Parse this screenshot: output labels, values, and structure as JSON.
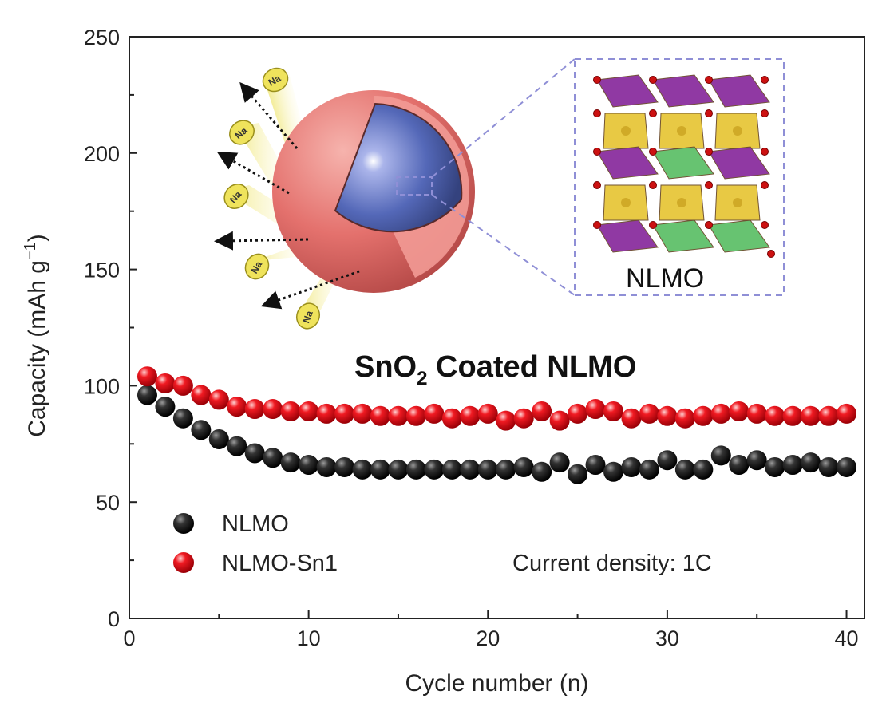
{
  "chart_data": {
    "type": "scatter",
    "title": "",
    "xlabel": "Cycle number (n)",
    "ylabel_main": "Capacity (mAh g",
    "ylabel_sup": "−1",
    "ylabel_close": ")",
    "xlim": [
      0,
      41
    ],
    "ylim": [
      0,
      250
    ],
    "xticks": [
      0,
      10,
      20,
      30,
      40
    ],
    "yticks": [
      0,
      50,
      100,
      150,
      200,
      250
    ],
    "grid": false,
    "legend_position": "bottom-left",
    "series": [
      {
        "name": "NLMO",
        "color": "#111111",
        "x": [
          1,
          2,
          3,
          4,
          5,
          6,
          7,
          8,
          9,
          10,
          11,
          12,
          13,
          14,
          15,
          16,
          17,
          18,
          19,
          20,
          21,
          22,
          23,
          24,
          25,
          26,
          27,
          28,
          29,
          30,
          31,
          32,
          33,
          34,
          35,
          36,
          37,
          38,
          39,
          40
        ],
        "y": [
          96,
          91,
          86,
          81,
          77,
          74,
          71,
          69,
          67,
          66,
          65,
          65,
          64,
          64,
          64,
          64,
          64,
          64,
          64,
          64,
          64,
          65,
          63,
          67,
          62,
          66,
          63,
          65,
          64,
          68,
          64,
          64,
          70,
          66,
          68,
          65,
          66,
          67,
          65,
          65
        ]
      },
      {
        "name": "NLMO-Sn1",
        "color": "#e8141c",
        "x": [
          1,
          2,
          3,
          4,
          5,
          6,
          7,
          8,
          9,
          10,
          11,
          12,
          13,
          14,
          15,
          16,
          17,
          18,
          19,
          20,
          21,
          22,
          23,
          24,
          25,
          26,
          27,
          28,
          29,
          30,
          31,
          32,
          33,
          34,
          35,
          36,
          37,
          38,
          39,
          40
        ],
        "y": [
          104,
          101,
          100,
          96,
          94,
          91,
          90,
          90,
          89,
          89,
          88,
          88,
          88,
          87,
          87,
          87,
          88,
          86,
          87,
          88,
          85,
          86,
          89,
          85,
          88,
          90,
          89,
          86,
          88,
          87,
          86,
          87,
          88,
          89,
          88,
          87,
          87,
          87,
          87,
          88
        ]
      }
    ],
    "annotations": {
      "inset_title_main": "SnO",
      "inset_title_sub": "2",
      "inset_title_rest": " Coated NLMO",
      "current_density": "Current density: 1C",
      "structure_label": "NLMO",
      "na_label": "Na"
    }
  },
  "colors": {
    "shell": "#e4716d",
    "core": "#5468b8",
    "purple": "#8b2f9f",
    "yellow": "#e7c73a",
    "green": "#5fc06a",
    "oxygen": "#cc1111",
    "frame_dash": "#8f8fd6"
  }
}
